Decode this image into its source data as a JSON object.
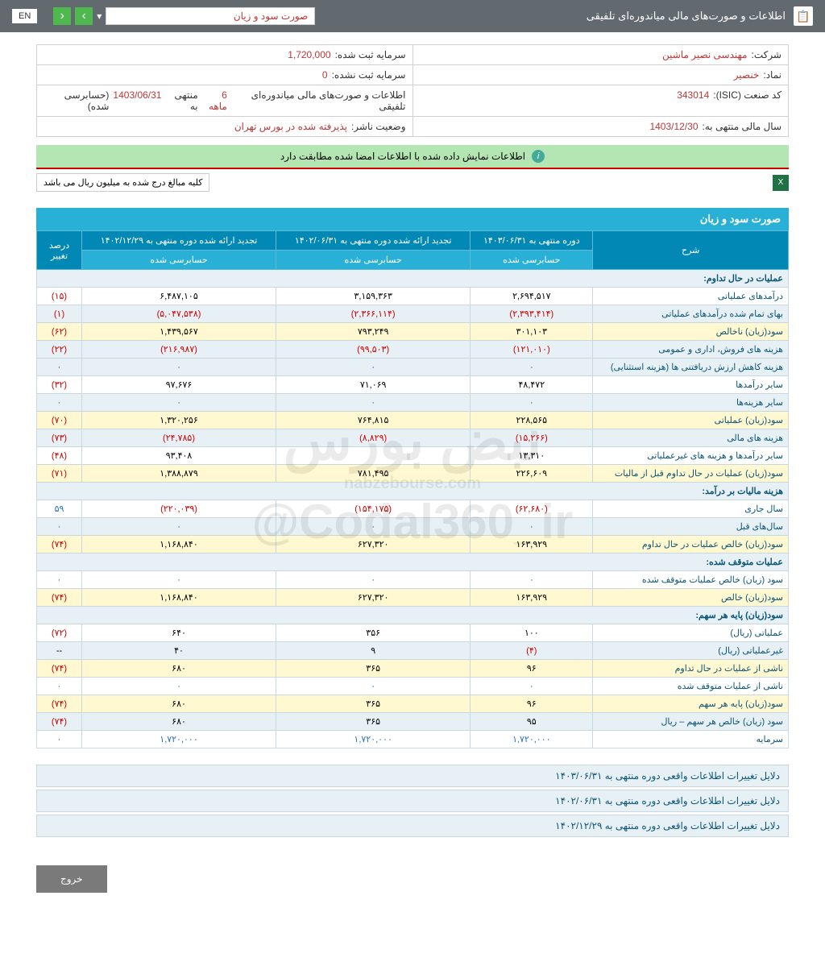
{
  "header": {
    "title": "اطلاعات و صورت‌های مالی میاندوره‌ای تلفیقی",
    "filter": "صورت سود و زیان",
    "lang": "EN"
  },
  "info": {
    "company_label": "شرکت:",
    "company": "مهندسی نصیر ماشین",
    "capital_reg_label": "سرمایه ثبت شده:",
    "capital_reg": "1,720,000",
    "symbol_label": "نماد:",
    "symbol": "خنصیر",
    "capital_unreg_label": "سرمایه ثبت نشده:",
    "capital_unreg": "0",
    "isic_label": "کد صنعت (ISIC):",
    "isic": "343014",
    "report_label": "اطلاعات و صورت‌های مالی میاندوره‌ای تلفیقی",
    "report_period": "6 ماهه",
    "report_end": "منتهی به",
    "report_date": "1403/06/31",
    "report_audit": "(حسابرسی شده)",
    "fiscal_label": "سال مالی منتهی به:",
    "fiscal": "1403/12/30",
    "status_label": "وضعیت ناشر:",
    "status": "پذیرفته شده در بورس تهران"
  },
  "match_msg": "اطلاعات نمایش داده شده با اطلاعات امضا شده مطابقت دارد",
  "rial_note": "کلیه مبالغ درج شده به میلیون ریال می باشد",
  "table_title": "صورت سود و زیان",
  "columns": {
    "desc": "شرح",
    "c1": "دوره منتهی به ۱۴۰۳/۰۶/۳۱",
    "c2": "تجدید ارائه شده دوره منتهی به ۱۴۰۲/۰۶/۳۱",
    "c3": "تجدید ارائه شده دوره منتهی به ۱۴۰۲/۱۲/۲۹",
    "c4": "درصد تغییر",
    "audited": "حسابرسی شده"
  },
  "rows": [
    {
      "type": "section",
      "label": "عملیات در حال تداوم:"
    },
    {
      "label": "درآمدهای عملیاتی",
      "v1": "۲,۶۹۴,۵۱۷",
      "v2": "۳,۱۵۹,۳۶۳",
      "v3": "۶,۴۸۷,۱۰۵",
      "pct": "(۱۵)",
      "pneg": true
    },
    {
      "label": "بهای تمام شده درآمدهای عملیاتی",
      "v1": "(۲,۳۹۳,۴۱۴)",
      "v1n": true,
      "v2": "(۲,۳۶۶,۱۱۴)",
      "v2n": true,
      "v3": "(۵,۰۴۷,۵۳۸)",
      "v3n": true,
      "pct": "(۱)",
      "pneg": true,
      "alt": true
    },
    {
      "label": "سود(زیان) ناخالص",
      "v1": "۳۰۱,۱۰۳",
      "v2": "۷۹۳,۲۴۹",
      "v3": "۱,۴۳۹,۵۶۷",
      "pct": "(۶۲)",
      "pneg": true,
      "hl": true
    },
    {
      "label": "هزینه های فروش، اداری و عمومی",
      "v1": "(۱۲۱,۰۱۰)",
      "v1n": true,
      "v2": "(۹۹,۵۰۳)",
      "v2n": true,
      "v3": "(۲۱۶,۹۸۷)",
      "v3n": true,
      "pct": "(۲۲)",
      "pneg": true,
      "alt": true
    },
    {
      "label": "هزینه کاهش ارزش دریافتنی ها (هزینه استثنایی)",
      "v1": "۰",
      "v2": "۰",
      "v3": "۰",
      "pct": "۰",
      "blue": true,
      "alt": true
    },
    {
      "label": "سایر درآمدها",
      "v1": "۴۸,۴۷۲",
      "v2": "۷۱,۰۶۹",
      "v3": "۹۷,۶۷۶",
      "pct": "(۳۲)",
      "pneg": true
    },
    {
      "label": "سایر هزینه‌ها",
      "v1": "۰",
      "v2": "۰",
      "v3": "۰",
      "pct": "۰",
      "blue": true,
      "alt": true
    },
    {
      "label": "سود(زیان) عملیاتی",
      "v1": "۲۲۸,۵۶۵",
      "v2": "۷۶۴,۸۱۵",
      "v3": "۱,۳۲۰,۲۵۶",
      "pct": "(۷۰)",
      "pneg": true,
      "hl": true
    },
    {
      "label": "هزینه های مالی",
      "v1": "(۱۵,۲۶۶)",
      "v1n": true,
      "v2": "(۸,۸۲۹)",
      "v2n": true,
      "v3": "(۲۴,۷۸۵)",
      "v3n": true,
      "pct": "(۷۳)",
      "pneg": true,
      "alt": true
    },
    {
      "label": "سایر درآمدها و هزینه های غیرعملیاتی",
      "v1": "۱۳,۳۱۰",
      "v2": "",
      "v3": "۹۳,۴۰۸",
      "pct": "(۴۸)",
      "pneg": true
    },
    {
      "label": "سود(زیان) عملیات در حال تداوم قبل از مالیات",
      "v1": "۲۲۶,۶۰۹",
      "v2": "۷۸۱,۴۹۵",
      "v3": "۱,۳۸۸,۸۷۹",
      "pct": "(۷۱)",
      "pneg": true,
      "hl": true
    },
    {
      "type": "section",
      "label": "هزینه مالیات بر درآمد:"
    },
    {
      "label": "سال جاری",
      "v1": "(۶۲,۶۸۰)",
      "v1n": true,
      "v2": "(۱۵۴,۱۷۵)",
      "v2n": true,
      "v3": "(۲۲۰,۰۳۹)",
      "v3n": true,
      "pct": "۵۹",
      "blue": true
    },
    {
      "label": "سال‌های قبل",
      "v1": "۰",
      "v2": "۰",
      "v3": "۰",
      "pct": "۰",
      "blue": true,
      "alt": true
    },
    {
      "label": "سود(زیان) خالص عملیات در حال تداوم",
      "v1": "۱۶۳,۹۲۹",
      "v2": "۶۲۷,۳۲۰",
      "v3": "۱,۱۶۸,۸۴۰",
      "pct": "(۷۴)",
      "pneg": true,
      "hl": true
    },
    {
      "type": "section",
      "label": "عملیات متوقف شده:"
    },
    {
      "label": "سود (زیان) خالص عملیات متوقف شده",
      "v1": "۰",
      "v2": "۰",
      "v3": "۰",
      "pct": "۰",
      "blue": true
    },
    {
      "label": "سود(زیان) خالص",
      "v1": "۱۶۳,۹۲۹",
      "v2": "۶۲۷,۳۲۰",
      "v3": "۱,۱۶۸,۸۴۰",
      "pct": "(۷۴)",
      "pneg": true,
      "hl": true
    },
    {
      "type": "section",
      "label": "سود(زیان) پایه هر سهم:"
    },
    {
      "label": "عملیاتی (ریال)",
      "v1": "۱۰۰",
      "v2": "۳۵۶",
      "v3": "۶۴۰",
      "pct": "(۷۲)",
      "pneg": true
    },
    {
      "label": "غیرعملیاتی (ریال)",
      "v1": "(۴)",
      "v1n": true,
      "v2": "۹",
      "v3": "۴۰",
      "pct": "--",
      "alt": true
    },
    {
      "label": "ناشی از عملیات در حال تداوم",
      "v1": "۹۶",
      "v2": "۳۶۵",
      "v3": "۶۸۰",
      "pct": "(۷۴)",
      "pneg": true,
      "hl": true
    },
    {
      "label": "ناشی از عملیات متوقف شده",
      "v1": "۰",
      "v2": "۰",
      "v3": "۰",
      "pct": "۰",
      "blue": true
    },
    {
      "label": "سود(زیان) پایه هر سهم",
      "v1": "۹۶",
      "v2": "۳۶۵",
      "v3": "۶۸۰",
      "pct": "(۷۴)",
      "pneg": true,
      "hl": true
    },
    {
      "label": "سود (زیان) خالص هر سهم – ریال",
      "v1": "۹۵",
      "v2": "۳۶۵",
      "v3": "۶۸۰",
      "pct": "(۷۴)",
      "pneg": true,
      "alt": true
    },
    {
      "label": "سرمایه",
      "v1": "۱,۷۲۰,۰۰۰",
      "v2": "۱,۷۲۰,۰۰۰",
      "v3": "۱,۷۲۰,۰۰۰",
      "pct": "۰",
      "blue": true
    }
  ],
  "footer_links": [
    "دلایل تغییرات اطلاعات واقعی دوره منتهی به ۱۴۰۳/۰۶/۳۱",
    "دلایل تغییرات اطلاعات واقعی دوره منتهی به ۱۴۰۲/۰۶/۳۱",
    "دلایل تغییرات اطلاعات واقعی دوره منتهی به ۱۴۰۲/۱۲/۲۹"
  ],
  "exit": "خروج",
  "watermark": {
    "main": "نبض بورس",
    "sub": "nabzebourse.com",
    "at": "@Codal360_ir"
  }
}
